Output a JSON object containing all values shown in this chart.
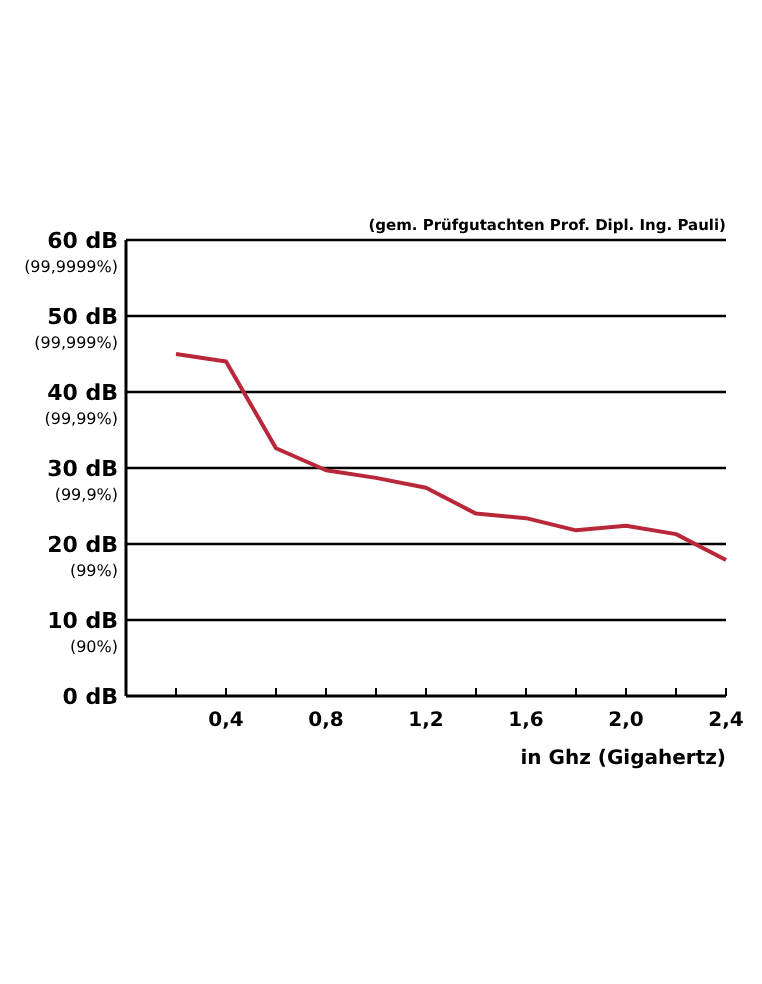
{
  "chart_data": {
    "type": "line",
    "xlabel": "in Ghz (Gigahertz)",
    "annotations": [
      "(gem. Prüfgutachten Prof. Dipl. Ing. Pauli)",
      "(90%)",
      "(99%)",
      "(99,9%)",
      "(99,99%)",
      "(99,999%)",
      "(99,9999%)"
    ],
    "x": [
      0.2,
      0.4,
      0.6,
      0.8,
      1.0,
      1.2,
      1.4,
      1.6,
      1.8,
      2.0,
      2.2,
      2.4
    ],
    "series": [
      {
        "color": "#b8283a",
        "values": [
          45,
          44,
          32.6,
          29.7,
          28.7,
          27.4,
          24,
          23.4,
          21.8,
          22.4,
          21.3,
          17.9
        ]
      }
    ],
    "xlim": [
      0,
      2.4
    ],
    "xticks": [
      {
        "value": 0.2,
        "label": null
      },
      {
        "value": 0.4,
        "label": "0,4"
      },
      {
        "value": 0.6,
        "label": null
      },
      {
        "value": 0.8,
        "label": "0,8"
      },
      {
        "value": 1.0,
        "label": null
      },
      {
        "value": 1.2,
        "label": "1,2"
      },
      {
        "value": 1.4,
        "label": null
      },
      {
        "value": 1.6,
        "label": "1,6"
      },
      {
        "value": 1.8,
        "label": null
      },
      {
        "value": 2.0,
        "label": "2,0"
      },
      {
        "value": 2.2,
        "label": null
      },
      {
        "value": 2.4,
        "label": "2,4"
      }
    ],
    "ylim": [
      0,
      60
    ],
    "yticks": [
      {
        "value": 0,
        "label": "0 dB"
      },
      {
        "value": 10,
        "label": "10 dB"
      },
      {
        "value": 20,
        "label": "20 dB"
      },
      {
        "value": 30,
        "label": "30 dB"
      },
      {
        "value": 40,
        "label": "40 dB"
      },
      {
        "value": 50,
        "label": "50 dB"
      },
      {
        "value": 60,
        "label": "60 dB"
      }
    ],
    "grid": "y",
    "marker": "none",
    "line_style": "solid"
  }
}
